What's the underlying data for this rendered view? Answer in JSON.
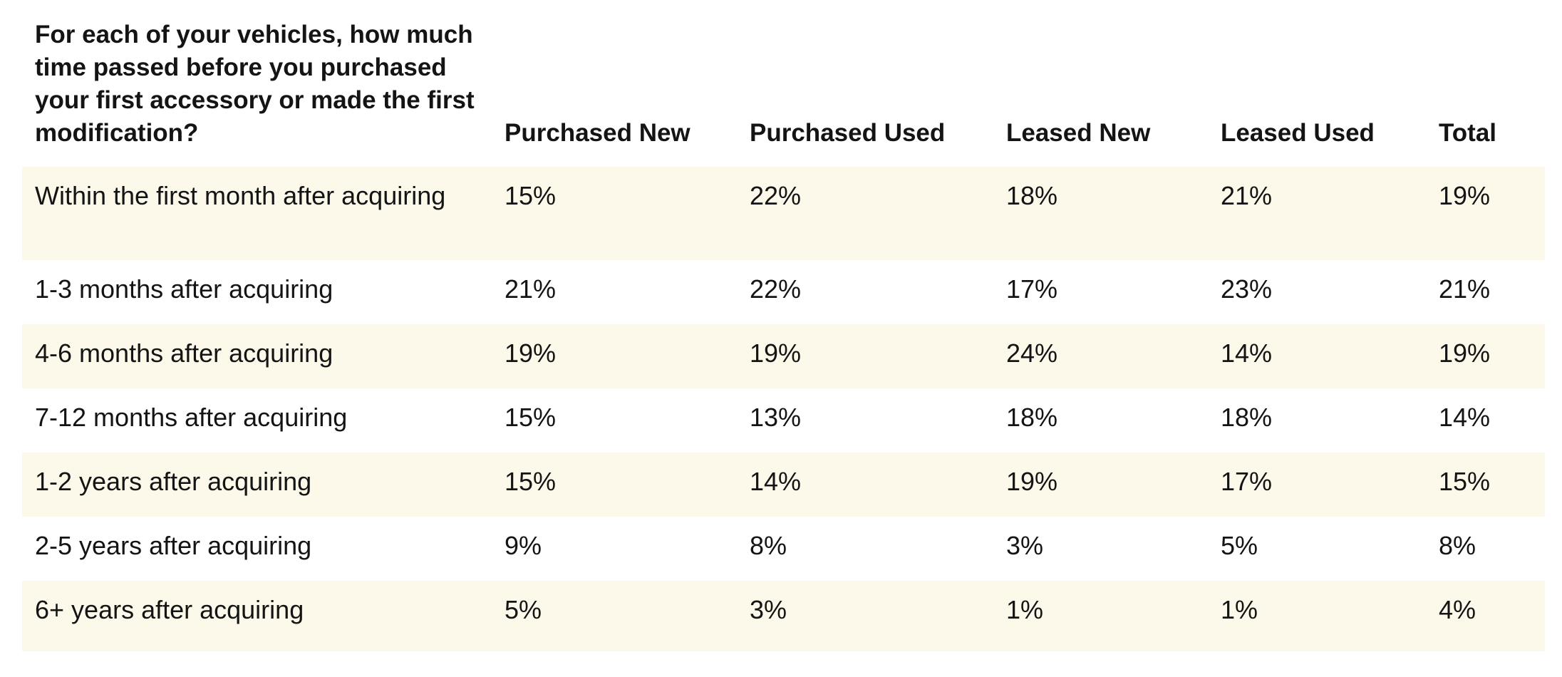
{
  "table": {
    "header": [
      "For each of your vehicles, how much time passed before you purchased your first accessory or made the first modification?",
      "Purchased New",
      "Purchased Used",
      "Leased New",
      "Leased Used",
      "Total"
    ],
    "rows": [
      [
        "Within the first month after acquiring",
        "15%",
        "22%",
        "18%",
        "21%",
        "19%"
      ],
      [
        "1-3 months after acquiring",
        "21%",
        "22%",
        "17%",
        "23%",
        "21%"
      ],
      [
        "4-6 months after acquiring",
        "19%",
        "19%",
        "24%",
        "14%",
        "19%"
      ],
      [
        "7-12 months after acquiring",
        "15%",
        "13%",
        "18%",
        "18%",
        "14%"
      ],
      [
        "1-2 years after acquiring",
        "15%",
        "14%",
        "19%",
        "17%",
        "15%"
      ],
      [
        "2-5 years after acquiring",
        "9%",
        "8%",
        "3%",
        "5%",
        "8%"
      ],
      [
        "6+ years after acquiring",
        "5%",
        "3%",
        "1%",
        "1%",
        "4%"
      ]
    ]
  }
}
